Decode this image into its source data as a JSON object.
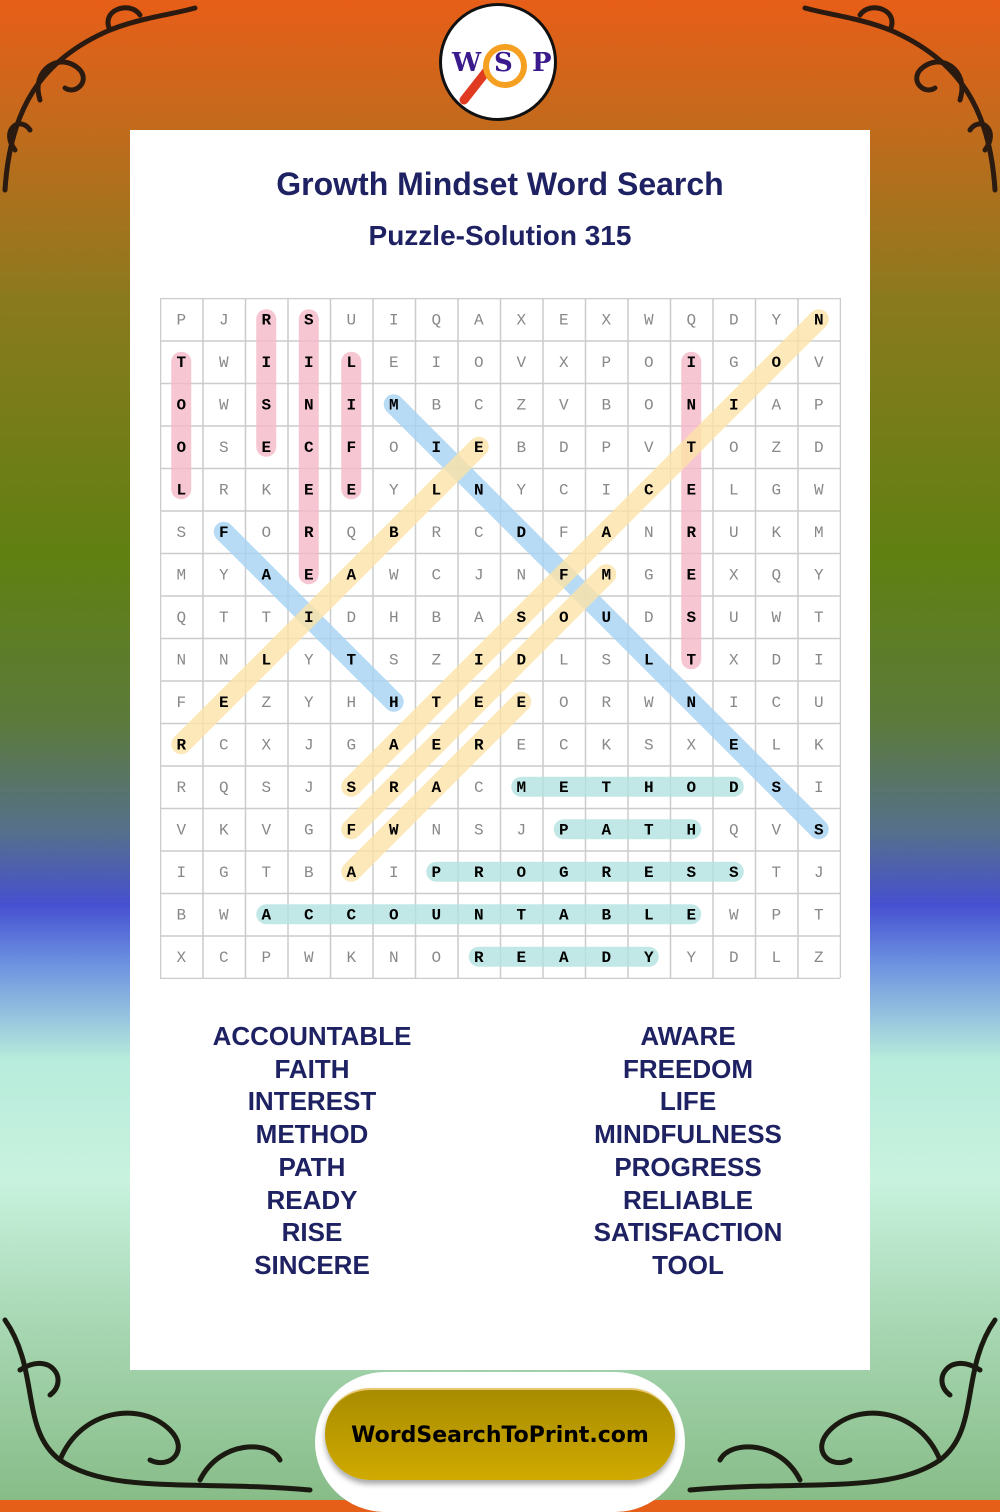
{
  "logo": {
    "letters": [
      "W",
      "S",
      "P"
    ],
    "icon": "magnifying-glass-icon"
  },
  "header": {
    "title": "Growth Mindset Word Search",
    "subtitle": "Puzzle-Solution 315"
  },
  "grid": {
    "rows": [
      "PJRSUIQAXEXWQDYN",
      "TWIILEIOVXPOIGOV",
      "OWSNIMBCZVBONIAP",
      "OSECFOIEBDPVTOZD",
      "LRKEEYLNYCICELGW",
      "SFORQBRCDFANRUKM",
      "MYAEAWCJNFMGEXQY",
      "QTTIDHBASOUDSUWT",
      "NNLYTSZIDLSLTXDI",
      "FEZYHHTEEORWNICU",
      "RCXJGAERECKSXELK",
      "RQSJSRACMETHODSI",
      "VKVGFWNSJPATHQVS",
      "IGTBAIPROGRESSTJ",
      "BWACCOUNTABLEWPT",
      "XCPWKNOREADYYDLZ"
    ],
    "colors": {
      "pink": "#f5b8c8",
      "blue": "#a6d2f2",
      "yellow": "#fbe2a6",
      "teal": "#b2e2e0"
    },
    "solutions": [
      {
        "word": "TOOL",
        "start": [
          1,
          0
        ],
        "end": [
          4,
          0
        ],
        "color": "pink"
      },
      {
        "word": "RISE",
        "start": [
          0,
          2
        ],
        "end": [
          3,
          2
        ],
        "color": "pink"
      },
      {
        "word": "SINCERE",
        "start": [
          0,
          3
        ],
        "end": [
          6,
          3
        ],
        "color": "pink"
      },
      {
        "word": "LIFE",
        "start": [
          1,
          4
        ],
        "end": [
          4,
          4
        ],
        "color": "pink"
      },
      {
        "word": "INTEREST",
        "start": [
          1,
          12
        ],
        "end": [
          8,
          12
        ],
        "color": "pink"
      },
      {
        "word": "MINDFULNESS",
        "start": [
          2,
          5
        ],
        "end": [
          12,
          15
        ],
        "color": "blue"
      },
      {
        "word": "FAITH",
        "start": [
          5,
          1
        ],
        "end": [
          9,
          5
        ],
        "color": "blue"
      },
      {
        "word": "RELIABLE",
        "start": [
          10,
          0
        ],
        "end": [
          3,
          7
        ],
        "color": "yellow"
      },
      {
        "word": "SATISFACTION",
        "start": [
          11,
          4
        ],
        "end": [
          0,
          15
        ],
        "color": "yellow"
      },
      {
        "word": "FREEDOM",
        "start": [
          12,
          4
        ],
        "end": [
          6,
          10
        ],
        "color": "yellow"
      },
      {
        "word": "AWARE",
        "start": [
          13,
          4
        ],
        "end": [
          9,
          8
        ],
        "color": "yellow"
      },
      {
        "word": "METHOD",
        "start": [
          11,
          8
        ],
        "end": [
          11,
          13
        ],
        "color": "teal"
      },
      {
        "word": "PATH",
        "start": [
          12,
          9
        ],
        "end": [
          12,
          12
        ],
        "color": "teal"
      },
      {
        "word": "PROGRESS",
        "start": [
          13,
          6
        ],
        "end": [
          13,
          13
        ],
        "color": "teal"
      },
      {
        "word": "ACCOUNTABLE",
        "start": [
          14,
          2
        ],
        "end": [
          14,
          12
        ],
        "color": "teal"
      },
      {
        "word": "READY",
        "start": [
          15,
          7
        ],
        "end": [
          15,
          11
        ],
        "color": "teal"
      }
    ]
  },
  "word_list": {
    "left": [
      "ACCOUNTABLE",
      "FAITH",
      "INTEREST",
      "METHOD",
      "PATH",
      "READY",
      "RISE",
      "SINCERE"
    ],
    "right": [
      "AWARE",
      "FREEDOM",
      "LIFE",
      "MINDFULNESS",
      "PROGRESS",
      "RELIABLE",
      "SATISFACTION",
      "TOOL"
    ]
  },
  "footer": {
    "site": "WordSearchToPrint.com"
  }
}
